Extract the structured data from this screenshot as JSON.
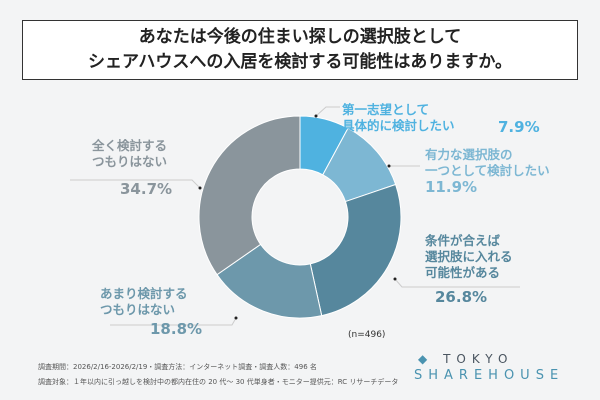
{
  "title": {
    "line1": "あなたは今後の住まい探しの選択肢として",
    "line2": "シェアハウスへの入居を検討する可能性はありますか。"
  },
  "chart_data": {
    "type": "pie",
    "donut": true,
    "categories": [
      "第一志望として具体的に検討したい",
      "有力な選択肢の一つとして検討したい",
      "条件が合えば選択肢に入れる可能性がある",
      "あまり検討するつもりはない",
      "全く検討するつもりはない"
    ],
    "values": [
      7.9,
      11.9,
      26.8,
      18.8,
      34.7
    ],
    "value_labels": [
      "7.9%",
      "11.9%",
      "26.8%",
      "18.8%",
      "34.7%"
    ],
    "colors": [
      "#4fb2e0",
      "#7db7d3",
      "#56879d",
      "#6d98ab",
      "#8a959c"
    ],
    "label_lines": [
      [
        "第一志望として",
        "具体的に検討したい"
      ],
      [
        "有力な選択肢の",
        "一つとして検討したい"
      ],
      [
        "条件が合えば",
        "選択肢に入れる",
        "可能性がある"
      ],
      [
        "あまり検討する",
        "つもりはない"
      ],
      [
        "全く検討する",
        "つもりはない"
      ]
    ],
    "note": "(n=496)"
  },
  "footer": {
    "line1": "調査期間：2026/2/16-2026/2/19・調査方法：インターネット調査・調査人数：496 名",
    "line2": "調査対象：１年以内に引っ越しを検討中の都内在住の 20 代～ 30 代単身者・モニター提供元：RC リサーチデータ"
  },
  "logo": {
    "line1": "TOKYO",
    "line2": "SHAREHOUSE"
  }
}
